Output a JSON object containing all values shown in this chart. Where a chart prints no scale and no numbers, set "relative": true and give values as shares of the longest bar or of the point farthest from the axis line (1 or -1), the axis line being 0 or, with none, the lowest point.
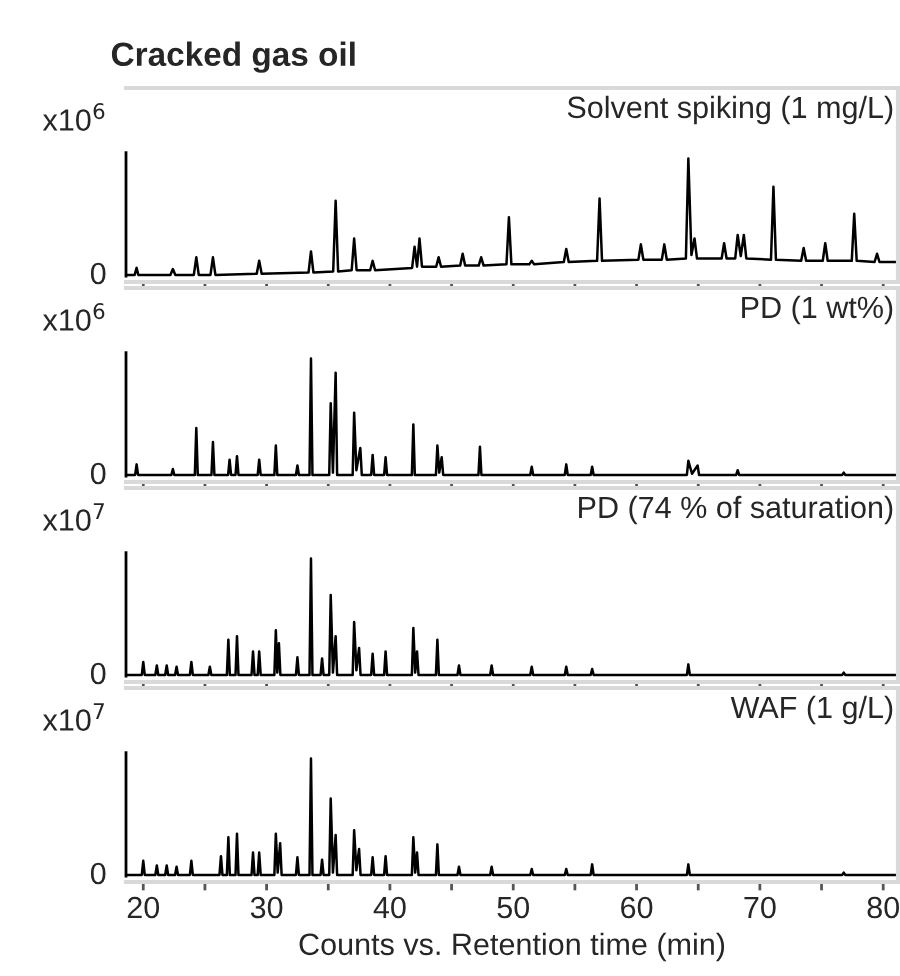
{
  "chart_data": [
    {
      "type": "line",
      "title": "Cracked gas oil",
      "relative": true,
      "xlim": [
        18.6,
        81.2
      ],
      "tick_labels": false,
      "xticks": [
        20,
        {
          "value": 25,
          "label": null
        },
        30,
        {
          "value": 35,
          "label": null
        },
        40,
        {
          "value": 45,
          "label": null
        },
        50,
        {
          "value": 55,
          "label": null
        },
        60,
        {
          "value": 65,
          "label": null
        },
        70,
        {
          "value": 75,
          "label": null
        },
        80
      ],
      "annotations": [
        "Solvent spiking (1 mg/L)",
        "x10$^{6}$",
        "0"
      ],
      "series": [
        {
          "color": "#000000",
          "x": [
            18.7,
            19.3,
            19.46,
            19.6,
            22.2,
            22.4,
            22.6,
            24.1,
            24.3,
            24.5,
            25.45,
            25.65,
            25.85,
            29.2,
            29.4,
            29.6,
            33.4,
            33.6,
            33.8,
            35.4,
            35.6,
            35.8,
            36.9,
            37.1,
            37.3,
            38.4,
            38.6,
            38.8,
            41.8,
            42.0,
            42.2,
            42.4,
            42.6,
            43.75,
            43.95,
            44.15,
            45.7,
            45.9,
            46.1,
            47.2,
            47.4,
            47.6,
            49.45,
            49.65,
            49.85,
            51.3,
            51.5,
            51.7,
            54.1,
            54.3,
            54.5,
            56.8,
            57.0,
            57.2,
            60.15,
            60.35,
            60.55,
            62.05,
            62.25,
            62.45,
            64.0,
            64.2,
            64.45,
            64.7,
            64.9,
            66.9,
            67.1,
            67.3,
            68.0,
            68.2,
            68.45,
            68.7,
            68.9,
            70.9,
            71.1,
            71.3,
            73.35,
            73.55,
            73.75,
            75.1,
            75.3,
            75.5,
            77.45,
            77.65,
            77.85,
            79.3,
            79.5,
            79.7,
            81.1
          ],
          "values": [
            0.01,
            0.01,
            0.07,
            0.01,
            0.01,
            0.06,
            0.01,
            0.01,
            0.16,
            0.01,
            0.01,
            0.16,
            0.01,
            0.02,
            0.13,
            0.02,
            0.03,
            0.21,
            0.03,
            0.04,
            0.64,
            0.04,
            0.05,
            0.32,
            0.05,
            0.05,
            0.13,
            0.05,
            0.07,
            0.25,
            0.08,
            0.32,
            0.08,
            0.08,
            0.16,
            0.08,
            0.09,
            0.19,
            0.09,
            0.09,
            0.16,
            0.09,
            0.1,
            0.5,
            0.1,
            0.1,
            0.13,
            0.1,
            0.12,
            0.23,
            0.12,
            0.13,
            0.66,
            0.13,
            0.14,
            0.27,
            0.14,
            0.14,
            0.27,
            0.14,
            0.15,
            1.0,
            0.18,
            0.32,
            0.15,
            0.15,
            0.28,
            0.15,
            0.15,
            0.35,
            0.17,
            0.35,
            0.15,
            0.14,
            0.76,
            0.14,
            0.13,
            0.24,
            0.13,
            0.13,
            0.28,
            0.13,
            0.13,
            0.53,
            0.13,
            0.12,
            0.19,
            0.12,
            0.12
          ]
        }
      ]
    },
    {
      "type": "line",
      "relative": true,
      "xlim": [
        18.6,
        81.2
      ],
      "tick_labels": false,
      "xticks": [
        20,
        {
          "value": 25,
          "label": null
        },
        30,
        {
          "value": 35,
          "label": null
        },
        40,
        {
          "value": 45,
          "label": null
        },
        50,
        {
          "value": 55,
          "label": null
        },
        60,
        {
          "value": 65,
          "label": null
        },
        70,
        {
          "value": 75,
          "label": null
        },
        80
      ],
      "annotations": [
        "PD (1 wt%)",
        "x10$^{6}$",
        "0"
      ],
      "series": [
        {
          "color": "#000000",
          "x": [
            18.7,
            19.34,
            19.46,
            19.58,
            22.28,
            22.4,
            22.52,
            24.18,
            24.3,
            24.42,
            25.53,
            25.65,
            25.77,
            26.88,
            27.0,
            27.12,
            27.48,
            27.6,
            27.72,
            29.28,
            29.4,
            29.52,
            30.63,
            30.75,
            30.87,
            32.38,
            32.5,
            32.62,
            33.48,
            33.6,
            33.72,
            35.08,
            35.2,
            35.38,
            35.6,
            35.72,
            36.98,
            37.1,
            37.28,
            37.6,
            37.72,
            38.48,
            38.6,
            38.72,
            39.53,
            39.65,
            39.77,
            41.78,
            41.9,
            42.02,
            43.73,
            43.85,
            44.0,
            44.2,
            44.32,
            47.18,
            47.3,
            47.42,
            51.38,
            51.5,
            51.62,
            54.18,
            54.3,
            54.42,
            56.28,
            56.4,
            56.52,
            64.08,
            64.2,
            64.5,
            64.95,
            65.07,
            68.08,
            68.2,
            68.32,
            76.68,
            76.8,
            76.92,
            81.1
          ],
          "values": [
            0.01,
            0.01,
            0.1,
            0.01,
            0.01,
            0.06,
            0.01,
            0.01,
            0.41,
            0.01,
            0.01,
            0.29,
            0.01,
            0.01,
            0.14,
            0.01,
            0.01,
            0.17,
            0.01,
            0.01,
            0.14,
            0.01,
            0.01,
            0.26,
            0.01,
            0.01,
            0.09,
            0.01,
            0.01,
            1.0,
            0.01,
            0.01,
            0.62,
            0.03,
            0.88,
            0.01,
            0.01,
            0.54,
            0.05,
            0.24,
            0.01,
            0.01,
            0.18,
            0.01,
            0.01,
            0.16,
            0.01,
            0.01,
            0.44,
            0.01,
            0.01,
            0.26,
            0.03,
            0.16,
            0.01,
            0.01,
            0.25,
            0.01,
            0.01,
            0.08,
            0.01,
            0.01,
            0.1,
            0.01,
            0.01,
            0.08,
            0.01,
            0.01,
            0.13,
            0.02,
            0.09,
            0.01,
            0.01,
            0.05,
            0.01,
            0.01,
            0.03,
            0.01,
            0.01
          ]
        }
      ]
    },
    {
      "type": "line",
      "relative": true,
      "xlim": [
        18.6,
        81.2
      ],
      "tick_labels": false,
      "xticks": [
        20,
        {
          "value": 25,
          "label": null
        },
        30,
        {
          "value": 35,
          "label": null
        },
        40,
        {
          "value": 45,
          "label": null
        },
        50,
        {
          "value": 55,
          "label": null
        },
        60,
        {
          "value": 65,
          "label": null
        },
        70,
        {
          "value": 75,
          "label": null
        },
        80
      ],
      "annotations": [
        "PD (74 % of saturation)",
        "x10$^{7}$",
        "0"
      ],
      "series": [
        {
          "color": "#000000",
          "x": [
            18.7,
            19.88,
            20.0,
            20.12,
            20.98,
            21.1,
            21.22,
            21.78,
            21.9,
            22.02,
            22.58,
            22.7,
            22.82,
            23.78,
            23.9,
            24.02,
            25.28,
            25.4,
            25.52,
            26.78,
            26.9,
            27.02,
            27.48,
            27.6,
            27.72,
            28.78,
            28.9,
            29.02,
            29.28,
            29.4,
            29.52,
            30.63,
            30.75,
            30.87,
            31.0,
            31.12,
            32.38,
            32.5,
            32.62,
            33.48,
            33.6,
            33.72,
            34.38,
            34.5,
            34.62,
            35.08,
            35.2,
            35.38,
            35.6,
            35.72,
            36.98,
            37.1,
            37.28,
            37.5,
            37.62,
            38.48,
            38.6,
            38.72,
            39.53,
            39.65,
            39.77,
            41.78,
            41.9,
            42.05,
            42.2,
            42.32,
            43.73,
            43.85,
            43.97,
            45.48,
            45.6,
            45.72,
            48.13,
            48.25,
            48.37,
            51.38,
            51.5,
            51.62,
            54.18,
            54.3,
            54.42,
            56.28,
            56.4,
            56.52,
            64.08,
            64.2,
            64.32,
            76.68,
            76.8,
            76.92,
            81.1
          ],
          "values": [
            0.01,
            0.01,
            0.12,
            0.01,
            0.01,
            0.09,
            0.01,
            0.01,
            0.09,
            0.01,
            0.01,
            0.08,
            0.01,
            0.01,
            0.12,
            0.01,
            0.01,
            0.08,
            0.01,
            0.01,
            0.31,
            0.01,
            0.01,
            0.34,
            0.01,
            0.01,
            0.21,
            0.01,
            0.01,
            0.21,
            0.01,
            0.01,
            0.39,
            0.03,
            0.28,
            0.01,
            0.01,
            0.16,
            0.01,
            0.01,
            1.0,
            0.01,
            0.01,
            0.15,
            0.01,
            0.01,
            0.69,
            0.03,
            0.34,
            0.01,
            0.01,
            0.46,
            0.05,
            0.24,
            0.01,
            0.01,
            0.19,
            0.01,
            0.01,
            0.21,
            0.01,
            0.01,
            0.41,
            0.03,
            0.21,
            0.01,
            0.01,
            0.31,
            0.01,
            0.01,
            0.09,
            0.01,
            0.01,
            0.09,
            0.01,
            0.01,
            0.08,
            0.01,
            0.01,
            0.08,
            0.01,
            0.01,
            0.06,
            0.01,
            0.01,
            0.1,
            0.01,
            0.01,
            0.03,
            0.01,
            0.01
          ]
        }
      ]
    },
    {
      "type": "line",
      "relative": true,
      "xlim": [
        18.6,
        81.2
      ],
      "tick_labels": "x",
      "xlabel": "Counts vs. Retention time (min)",
      "xticks": [
        20,
        {
          "value": 25,
          "label": null
        },
        30,
        {
          "value": 35,
          "label": null
        },
        40,
        {
          "value": 45,
          "label": null
        },
        50,
        {
          "value": 55,
          "label": null
        },
        60,
        {
          "value": 65,
          "label": null
        },
        70,
        {
          "value": 75,
          "label": null
        },
        80
      ],
      "annotations": [
        "WAF (1 g/L)",
        "x10$^{7}$",
        "0"
      ],
      "series": [
        {
          "color": "#000000",
          "x": [
            18.7,
            19.88,
            20.0,
            20.12,
            20.98,
            21.1,
            21.22,
            21.78,
            21.9,
            22.02,
            22.58,
            22.7,
            22.82,
            23.78,
            23.9,
            24.02,
            26.18,
            26.3,
            26.42,
            26.78,
            26.9,
            27.02,
            27.48,
            27.6,
            27.72,
            28.78,
            28.9,
            29.02,
            29.28,
            29.4,
            29.52,
            30.63,
            30.75,
            30.9,
            31.1,
            31.22,
            32.38,
            32.5,
            32.62,
            33.48,
            33.6,
            33.72,
            34.38,
            34.5,
            34.62,
            35.08,
            35.2,
            35.38,
            35.6,
            35.72,
            36.98,
            37.1,
            37.28,
            37.5,
            37.62,
            38.48,
            38.6,
            38.72,
            39.53,
            39.65,
            39.77,
            41.78,
            41.9,
            42.05,
            42.2,
            42.32,
            43.73,
            43.85,
            43.97,
            45.48,
            45.6,
            45.72,
            48.13,
            48.25,
            48.37,
            51.38,
            51.5,
            51.62,
            54.18,
            54.3,
            54.42,
            56.28,
            56.4,
            56.52,
            64.08,
            64.2,
            64.32,
            76.68,
            76.8,
            76.92,
            81.1
          ],
          "values": [
            0.01,
            0.01,
            0.13,
            0.01,
            0.01,
            0.09,
            0.01,
            0.01,
            0.09,
            0.01,
            0.01,
            0.08,
            0.01,
            0.01,
            0.13,
            0.01,
            0.01,
            0.17,
            0.01,
            0.01,
            0.33,
            0.01,
            0.01,
            0.36,
            0.01,
            0.01,
            0.2,
            0.01,
            0.01,
            0.2,
            0.01,
            0.01,
            0.36,
            0.03,
            0.28,
            0.01,
            0.01,
            0.16,
            0.01,
            0.01,
            1.0,
            0.01,
            0.01,
            0.14,
            0.01,
            0.01,
            0.66,
            0.03,
            0.35,
            0.01,
            0.01,
            0.39,
            0.05,
            0.23,
            0.01,
            0.01,
            0.16,
            0.01,
            0.01,
            0.17,
            0.01,
            0.01,
            0.33,
            0.03,
            0.2,
            0.01,
            0.01,
            0.27,
            0.01,
            0.01,
            0.08,
            0.01,
            0.01,
            0.08,
            0.01,
            0.01,
            0.06,
            0.01,
            0.01,
            0.06,
            0.01,
            0.01,
            0.1,
            0.01,
            0.01,
            0.1,
            0.01,
            0.01,
            0.03,
            0.01,
            0.01
          ]
        }
      ]
    }
  ]
}
